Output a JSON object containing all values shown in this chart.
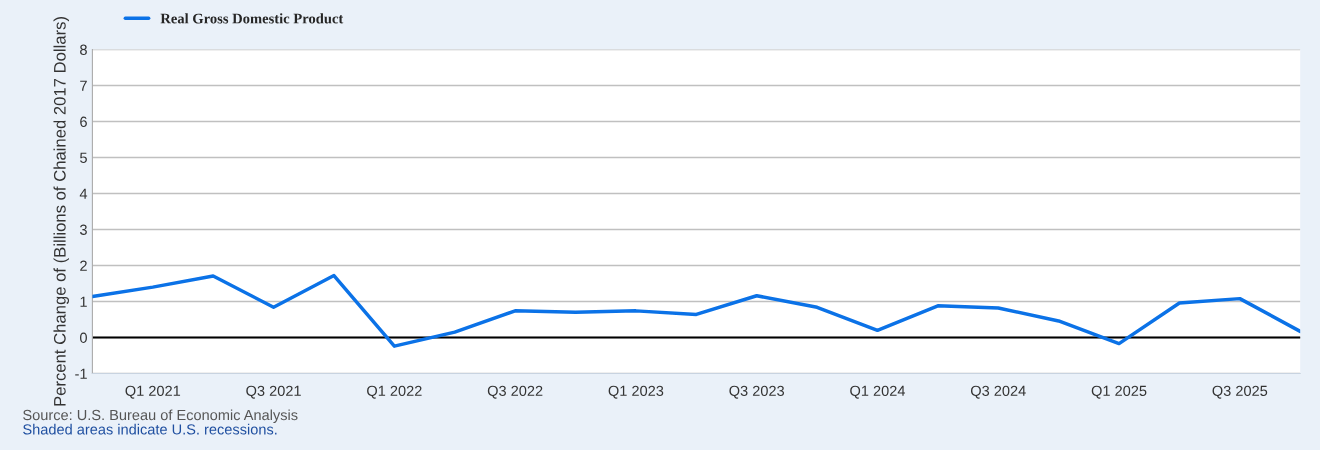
{
  "chart_data": {
    "type": "line",
    "ylabel": "Percent Change of (Billions of Chained 2017 Dollars)",
    "categories": [
      null,
      "Q1 2021",
      null,
      "Q3 2021",
      null,
      "Q1 2022",
      null,
      "Q3 2022",
      null,
      "Q1 2023",
      null,
      "Q3 2023",
      null,
      "Q1 2024",
      null,
      "Q3 2024",
      null,
      "Q1 2025",
      null,
      "Q3 2025",
      null
    ],
    "series": [
      {
        "name": "Real Gross Domestic Product",
        "color": "#0b72e7",
        "values": [
          1.14,
          1.4,
          1.71,
          0.84,
          1.72,
          -0.24,
          0.15,
          0.74,
          0.7,
          0.74,
          0.64,
          1.16,
          0.84,
          0.2,
          0.88,
          0.82,
          0.46,
          -0.17,
          0.96,
          1.08,
          0.17
        ]
      }
    ],
    "ylim": [
      -1,
      8
    ],
    "yticks": [
      -1,
      0,
      1,
      2,
      3,
      4,
      5,
      6,
      7,
      8
    ],
    "ref_lines": [
      {
        "axis": "y",
        "value": 0,
        "color": "#000000"
      }
    ],
    "grid": "y",
    "legend": "top left",
    "marker": "none",
    "line_style": "solid",
    "annotations": [
      "Source: U.S. Bureau of Economic Analysis",
      "Shaded areas indicate U.S. recessions."
    ]
  }
}
